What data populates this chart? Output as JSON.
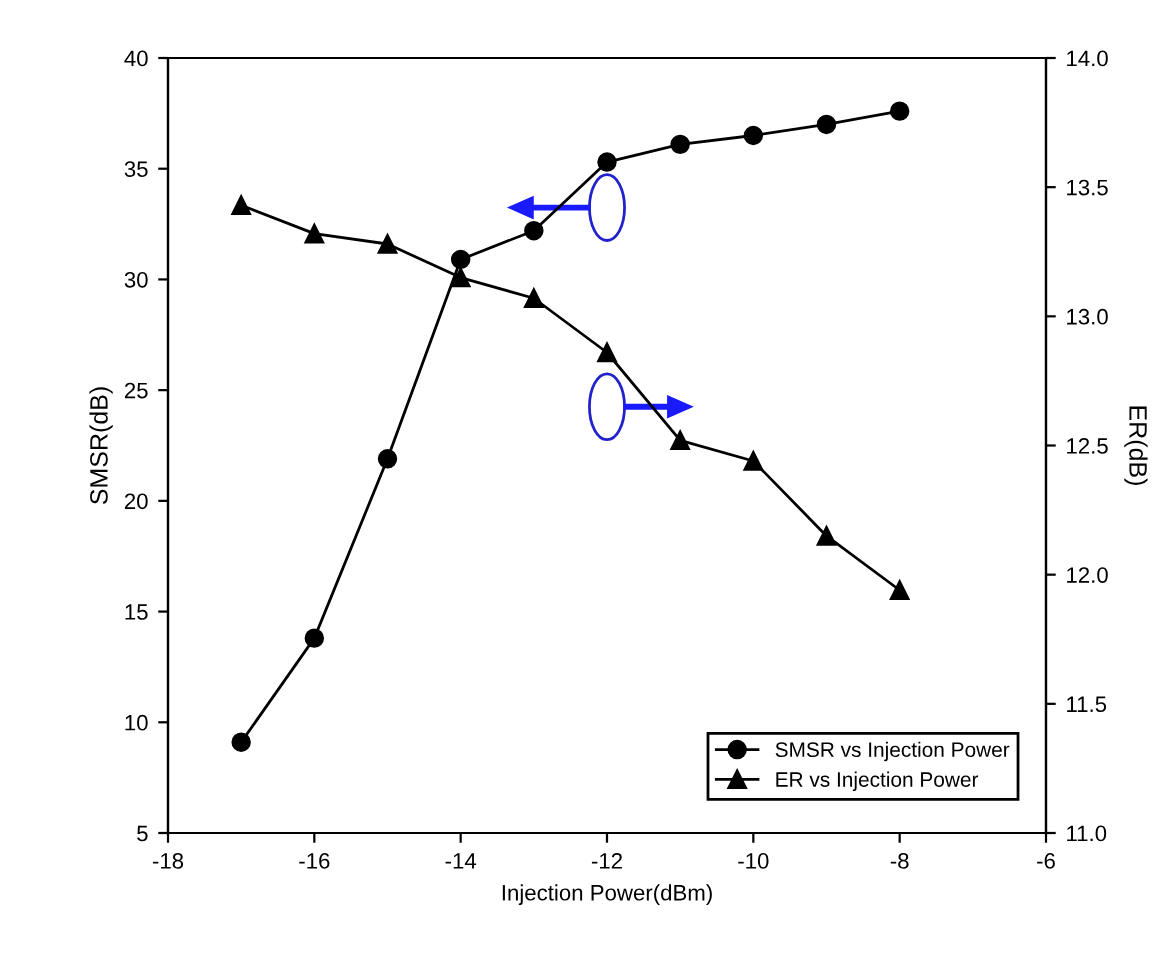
{
  "chart_data": {
    "type": "line",
    "xlabel": "Injection Power(dBm)",
    "ylabel": "SMSR(dB)",
    "y2label": "ER(dB)",
    "x": [
      -17,
      -16,
      -15,
      -14,
      -13,
      -12,
      -11,
      -10,
      -9,
      -8
    ],
    "series": [
      {
        "name": "SMSR vs Injection Power",
        "color": "#000000",
        "marker": "circle",
        "values": [
          9.1,
          13.8,
          21.9,
          30.9,
          32.2,
          35.3,
          36.1,
          36.5,
          37.0,
          37.6
        ]
      },
      {
        "name": "ER vs Injection Power",
        "color": "#000000",
        "marker": "triangle",
        "axis": "y2",
        "values": [
          13.43,
          13.32,
          13.28,
          13.15,
          13.07,
          12.86,
          12.52,
          12.44,
          12.15,
          11.94
        ]
      }
    ],
    "xlim": [
      -18,
      -6
    ],
    "xticks": [
      -18,
      -16,
      -14,
      -12,
      -10,
      -8,
      -6
    ],
    "ylim": [
      5,
      40
    ],
    "yticks": [
      5,
      10,
      15,
      20,
      25,
      30,
      35,
      40
    ],
    "y2lim": [
      11.0,
      14.0
    ],
    "y2ticks": [
      {
        "value": 11.0,
        "label": "11.0"
      },
      {
        "value": 11.5,
        "label": "11.5"
      },
      {
        "value": 12.0,
        "label": "12.0"
      },
      {
        "value": 12.5,
        "label": "12.5"
      },
      {
        "value": 13.0,
        "label": "13.0"
      },
      {
        "value": 13.5,
        "label": "13.5"
      },
      {
        "value": 14.0,
        "label": "14.0"
      }
    ],
    "legend": "lower right",
    "grid": false,
    "line_style": "solid"
  }
}
